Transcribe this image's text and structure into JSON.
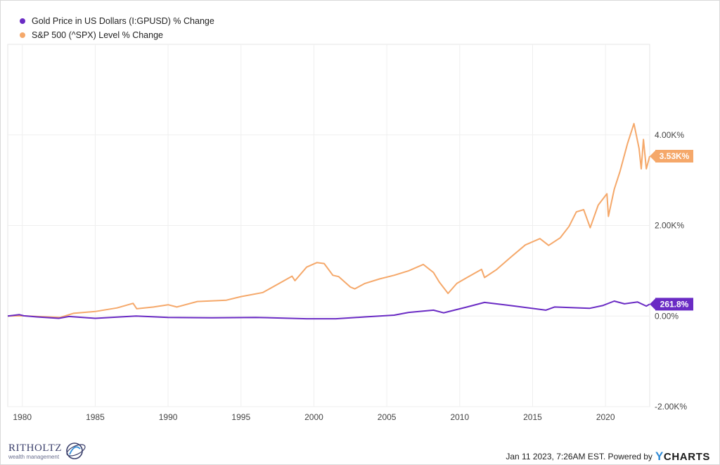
{
  "legend": {
    "gold_label": "Gold Price in US Dollars (I:GPUSD) % Change",
    "spx_label": "S&P 500 (^SPX) Level % Change"
  },
  "colors": {
    "gold": "#6a2bc4",
    "spx": "#f5a86a",
    "grid": "#efefef"
  },
  "chart_data": {
    "type": "line",
    "x_range": [
      1979.0,
      2023.03
    ],
    "ylim": [
      -2000,
      6000
    ],
    "y_ticks": [
      4000,
      2000,
      0,
      -2000
    ],
    "y_tick_labels": [
      "4.00K%",
      "2.00K%",
      "0.00%",
      "-2.00K%"
    ],
    "x_ticks": [
      1980,
      1985,
      1990,
      1995,
      2000,
      2005,
      2010,
      2015,
      2020
    ],
    "x_tick_labels": [
      "1980",
      "1985",
      "1990",
      "1995",
      "2000",
      "2005",
      "2010",
      "2015",
      "2020"
    ],
    "grid": true,
    "legend_position": "top-left",
    "series": [
      {
        "name": "S&P 500 (^SPX) Level % Change",
        "end_label": "3.53K%",
        "points": [
          [
            1979.0,
            0
          ],
          [
            1980.0,
            5
          ],
          [
            1981.0,
            -10
          ],
          [
            1982.6,
            -30
          ],
          [
            1983.5,
            60
          ],
          [
            1985.0,
            100
          ],
          [
            1986.5,
            180
          ],
          [
            1987.6,
            280
          ],
          [
            1987.85,
            160
          ],
          [
            1989.0,
            200
          ],
          [
            1990.0,
            250
          ],
          [
            1990.6,
            200
          ],
          [
            1992.0,
            320
          ],
          [
            1994.0,
            350
          ],
          [
            1995.0,
            430
          ],
          [
            1996.5,
            520
          ],
          [
            1997.5,
            700
          ],
          [
            1998.5,
            880
          ],
          [
            1998.7,
            780
          ],
          [
            1999.5,
            1080
          ],
          [
            2000.2,
            1180
          ],
          [
            2000.7,
            1160
          ],
          [
            2001.3,
            900
          ],
          [
            2001.7,
            870
          ],
          [
            2002.5,
            640
          ],
          [
            2002.8,
            600
          ],
          [
            2003.5,
            720
          ],
          [
            2004.5,
            820
          ],
          [
            2005.5,
            900
          ],
          [
            2006.5,
            1000
          ],
          [
            2007.5,
            1140
          ],
          [
            2008.2,
            960
          ],
          [
            2008.6,
            750
          ],
          [
            2009.2,
            500
          ],
          [
            2009.8,
            720
          ],
          [
            2010.5,
            850
          ],
          [
            2011.5,
            1030
          ],
          [
            2011.7,
            850
          ],
          [
            2012.5,
            1020
          ],
          [
            2013.5,
            1300
          ],
          [
            2014.5,
            1570
          ],
          [
            2015.5,
            1710
          ],
          [
            2016.1,
            1560
          ],
          [
            2016.9,
            1730
          ],
          [
            2017.5,
            1980
          ],
          [
            2018.0,
            2300
          ],
          [
            2018.5,
            2350
          ],
          [
            2018.95,
            1950
          ],
          [
            2019.5,
            2450
          ],
          [
            2020.1,
            2700
          ],
          [
            2020.2,
            2200
          ],
          [
            2020.6,
            2800
          ],
          [
            2021.0,
            3200
          ],
          [
            2021.5,
            3800
          ],
          [
            2021.95,
            4250
          ],
          [
            2022.3,
            3700
          ],
          [
            2022.45,
            3250
          ],
          [
            2022.6,
            3900
          ],
          [
            2022.8,
            3250
          ],
          [
            2023.03,
            3530
          ]
        ]
      },
      {
        "name": "Gold Price in US Dollars (I:GPUSD) % Change",
        "end_label": "261.8%",
        "points": [
          [
            1979.0,
            0
          ],
          [
            1979.8,
            30
          ],
          [
            1980.1,
            5
          ],
          [
            1981.0,
            -20
          ],
          [
            1982.5,
            -50
          ],
          [
            1983.2,
            -10
          ],
          [
            1985.0,
            -50
          ],
          [
            1987.8,
            0
          ],
          [
            1990.0,
            -30
          ],
          [
            1993.0,
            -40
          ],
          [
            1996.0,
            -30
          ],
          [
            1999.5,
            -60
          ],
          [
            2001.5,
            -60
          ],
          [
            2003.5,
            -20
          ],
          [
            2005.5,
            20
          ],
          [
            2006.5,
            80
          ],
          [
            2008.2,
            130
          ],
          [
            2008.9,
            70
          ],
          [
            2010.5,
            200
          ],
          [
            2011.7,
            300
          ],
          [
            2013.5,
            230
          ],
          [
            2015.9,
            130
          ],
          [
            2016.5,
            200
          ],
          [
            2018.9,
            170
          ],
          [
            2019.8,
            230
          ],
          [
            2020.6,
            330
          ],
          [
            2021.3,
            270
          ],
          [
            2022.2,
            310
          ],
          [
            2022.8,
            220
          ],
          [
            2023.03,
            261.8
          ]
        ]
      }
    ]
  },
  "footer": {
    "logo_title": "RITHOLTZ",
    "logo_sub": "wealth management",
    "credit": "Jan 11 2023, 7:26AM EST. Powered by",
    "brand_y": "Y",
    "brand_rest": "CHARTS"
  }
}
